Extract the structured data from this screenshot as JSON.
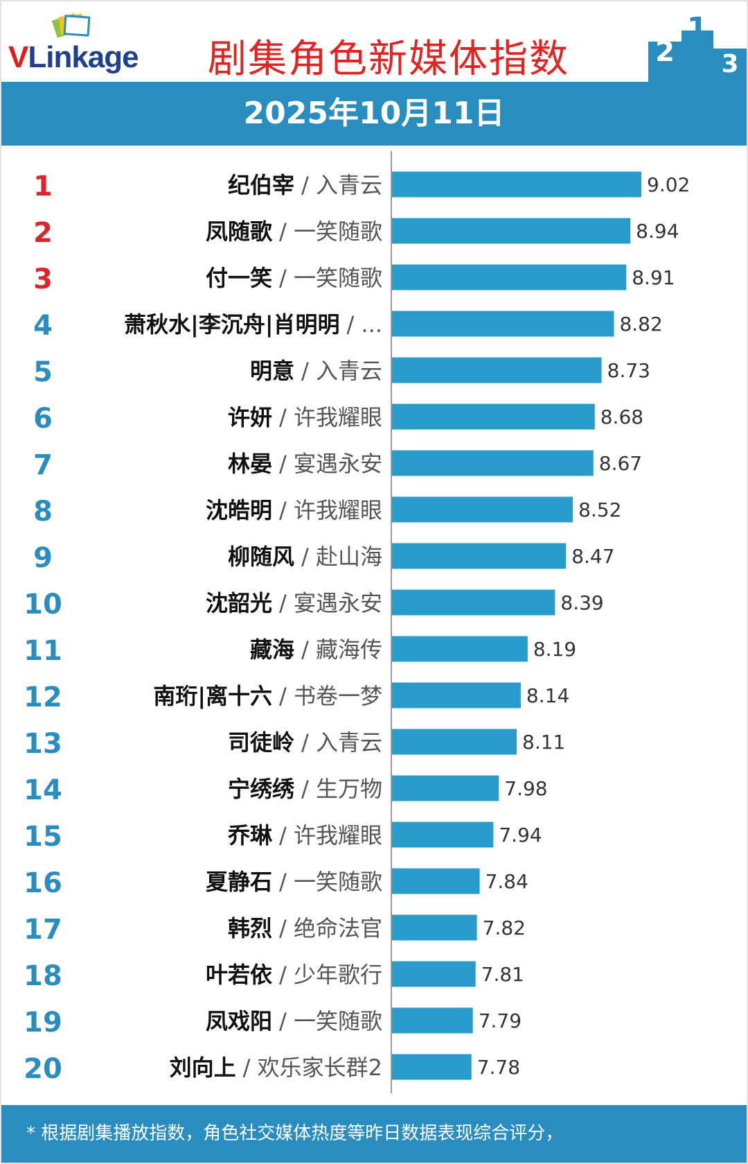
{
  "header": {
    "logo_text_v": "V",
    "logo_text_rest": "Linkage",
    "title": "剧集角色新媒体指数",
    "podium_numbers": [
      "2",
      "1",
      "3"
    ]
  },
  "date_band": {
    "text": "2025年10月11日"
  },
  "footer": {
    "note": "* 根据剧集播放指数，角色社交媒体热度等昨日数据表现综合评分，"
  },
  "colors": {
    "bar": "#2a9ccc",
    "rank_top3": "#d9252b",
    "rank_rest": "#2a8dc0",
    "band": "#2a8dc0",
    "title": "#e32222"
  },
  "chart_data": {
    "type": "bar",
    "orientation": "horizontal",
    "title": "剧集角色新媒体指数",
    "subtitle": "2025年10月11日",
    "xlim": [
      0,
      10
    ],
    "rows": [
      {
        "rank": "1",
        "role": "纪伯宰",
        "drama": "/ 入青云",
        "value": 9.02,
        "value_label": "9.02"
      },
      {
        "rank": "2",
        "role": "凤随歌",
        "drama": "/ 一笑随歌",
        "value": 8.94,
        "value_label": "8.94"
      },
      {
        "rank": "3",
        "role": "付一笑",
        "drama": "/ 一笑随歌",
        "value": 8.91,
        "value_label": "8.91"
      },
      {
        "rank": "4",
        "role": "萧秋水|李沉舟|肖明明",
        "drama": "/ ...",
        "value": 8.82,
        "value_label": "8.82"
      },
      {
        "rank": "5",
        "role": "明意",
        "drama": "/ 入青云",
        "value": 8.73,
        "value_label": "8.73"
      },
      {
        "rank": "6",
        "role": "许妍",
        "drama": "/ 许我耀眼",
        "value": 8.68,
        "value_label": "8.68"
      },
      {
        "rank": "7",
        "role": "林晏",
        "drama": "/ 宴遇永安",
        "value": 8.67,
        "value_label": "8.67"
      },
      {
        "rank": "8",
        "role": "沈皓明",
        "drama": "/ 许我耀眼",
        "value": 8.52,
        "value_label": "8.52"
      },
      {
        "rank": "9",
        "role": "柳随风",
        "drama": "/ 赴山海",
        "value": 8.47,
        "value_label": "8.47"
      },
      {
        "rank": "10",
        "role": "沈韶光",
        "drama": "/ 宴遇永安",
        "value": 8.39,
        "value_label": "8.39"
      },
      {
        "rank": "11",
        "role": "藏海",
        "drama": "/ 藏海传",
        "value": 8.19,
        "value_label": "8.19"
      },
      {
        "rank": "12",
        "role": "南珩|离十六",
        "drama": "/ 书卷一梦",
        "value": 8.14,
        "value_label": "8.14"
      },
      {
        "rank": "13",
        "role": "司徒岭",
        "drama": "/ 入青云",
        "value": 8.11,
        "value_label": "8.11"
      },
      {
        "rank": "14",
        "role": "宁绣绣",
        "drama": "/ 生万物",
        "value": 7.98,
        "value_label": "7.98"
      },
      {
        "rank": "15",
        "role": "乔琳",
        "drama": "/ 许我耀眼",
        "value": 7.94,
        "value_label": "7.94"
      },
      {
        "rank": "16",
        "role": "夏静石",
        "drama": "/ 一笑随歌",
        "value": 7.84,
        "value_label": "7.84"
      },
      {
        "rank": "17",
        "role": "韩烈",
        "drama": "/ 绝命法官",
        "value": 7.82,
        "value_label": "7.82"
      },
      {
        "rank": "18",
        "role": "叶若依",
        "drama": "/ 少年歌行",
        "value": 7.81,
        "value_label": "7.81"
      },
      {
        "rank": "19",
        "role": "凤戏阳",
        "drama": "/ 一笑随歌",
        "value": 7.79,
        "value_label": "7.79"
      },
      {
        "rank": "20",
        "role": "刘向上",
        "drama": "/ 欢乐家长群2",
        "value": 7.78,
        "value_label": "7.78"
      }
    ]
  }
}
